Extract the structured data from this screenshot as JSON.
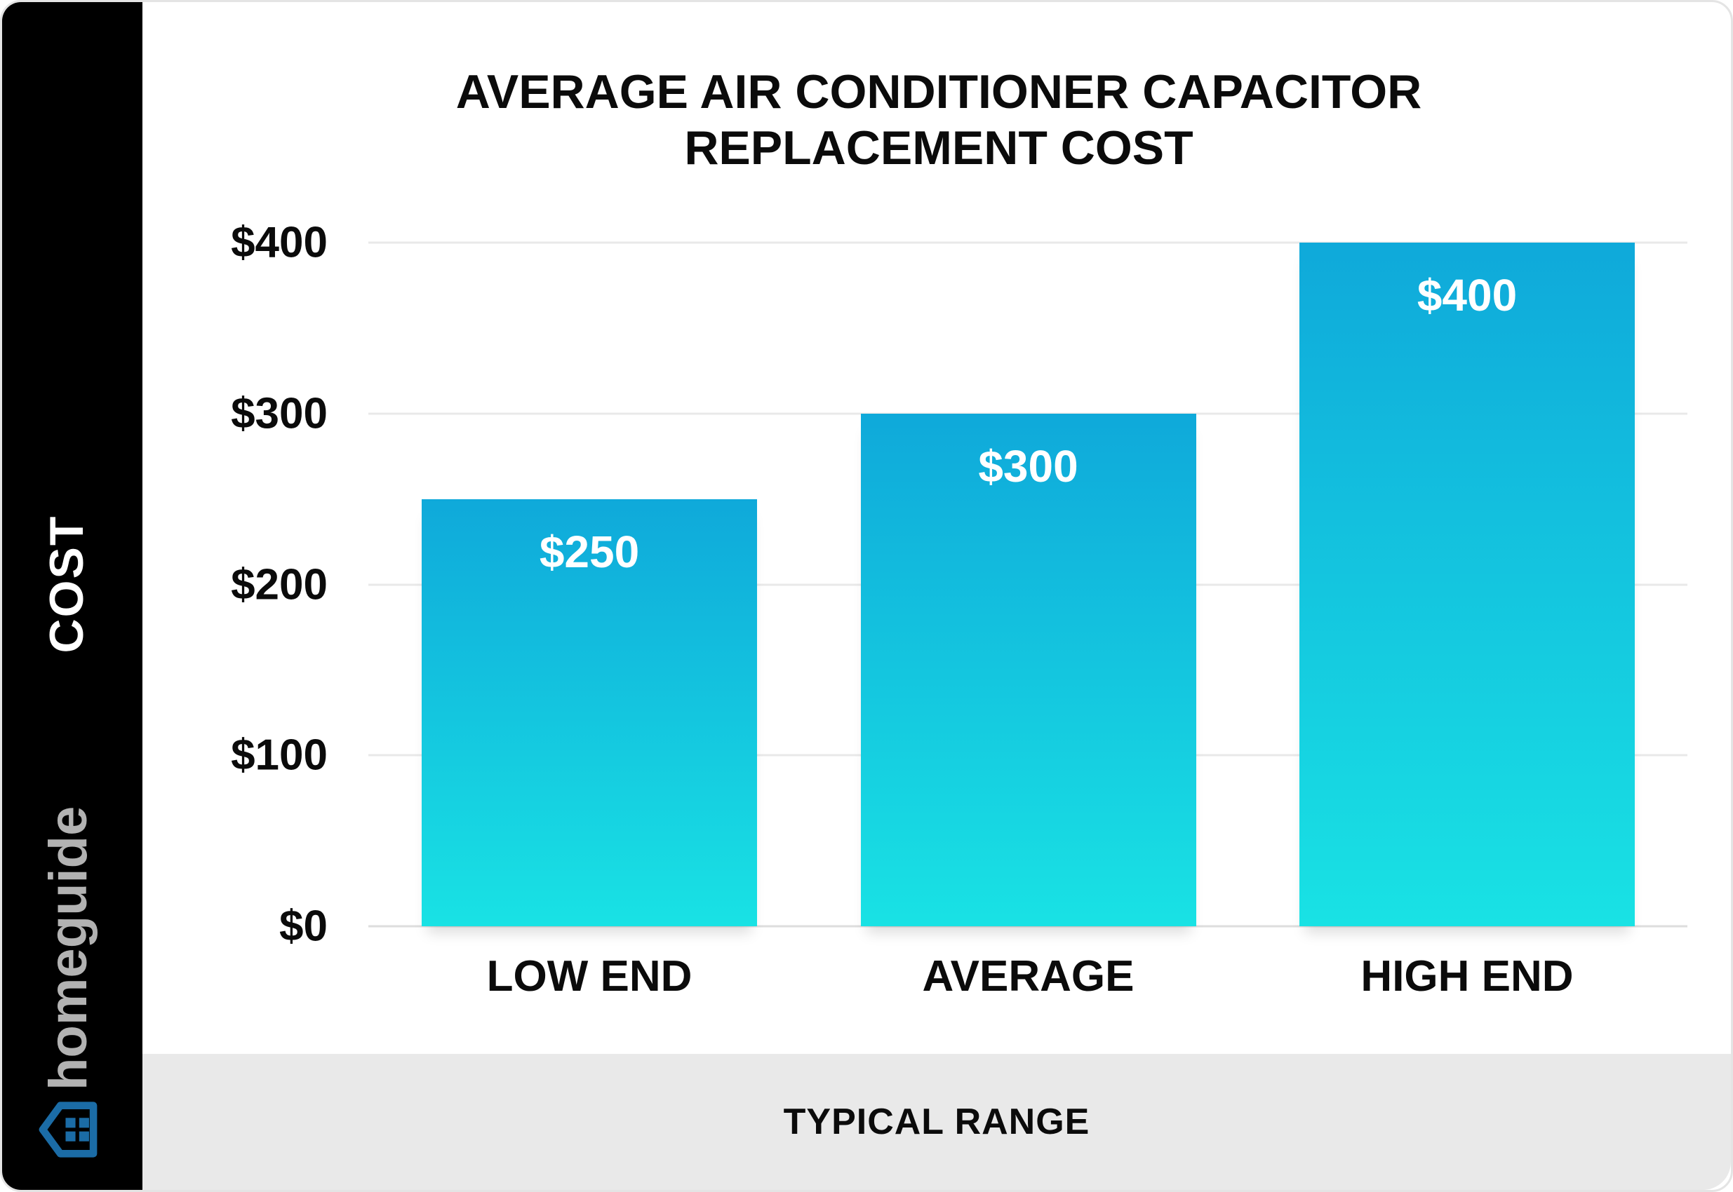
{
  "brand": {
    "logo_text": "homeguide",
    "logo_text_color": "#b2b2b2",
    "icon_color": "#1b6ca6",
    "icon_name": "house-icon"
  },
  "sidebar": {
    "y_axis_label": "COST"
  },
  "footer": {
    "x_axis_label": "TYPICAL RANGE"
  },
  "chart_data": {
    "type": "bar",
    "title": "AVERAGE AIR CONDITIONER CAPACITOR REPLACEMENT COST",
    "title_lines": [
      "AVERAGE AIR CONDITIONER CAPACITOR",
      "REPLACEMENT COST"
    ],
    "categories": [
      "LOW END",
      "AVERAGE",
      "HIGH END"
    ],
    "values": [
      250,
      300,
      400
    ],
    "value_labels": [
      "$250",
      "$300",
      "$400"
    ],
    "y_ticks": [
      {
        "value": 400,
        "label": "$400"
      },
      {
        "value": 300,
        "label": "$300"
      },
      {
        "value": 200,
        "label": "$200"
      },
      {
        "value": 100,
        "label": "$100"
      },
      {
        "value": 0,
        "label": "$0"
      }
    ],
    "ylim": [
      0,
      400
    ],
    "xlabel": "TYPICAL RANGE",
    "ylabel": "COST",
    "grid": true,
    "legend": false,
    "gridline_color": "#e9e9e9",
    "bar_gradient_top": "#0fa9da",
    "bar_gradient_bottom": "#19e2e4"
  }
}
